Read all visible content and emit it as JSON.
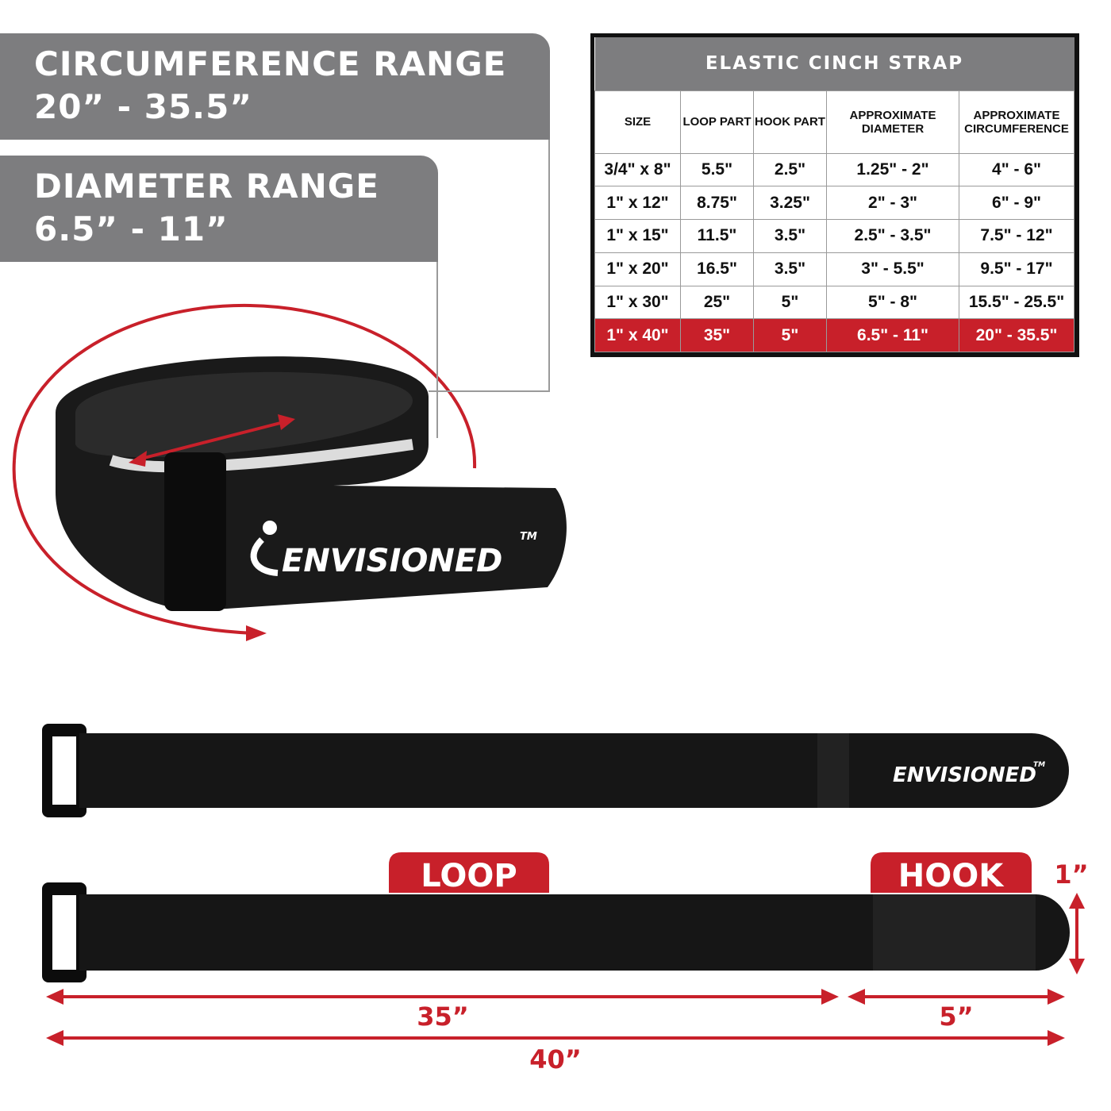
{
  "circumference_banner": {
    "title": "CIRCUMFERENCE RANGE",
    "value": "20” - 35.5”"
  },
  "diameter_banner": {
    "title": "DIAMETER RANGE",
    "value": "6.5” - 11”"
  },
  "table": {
    "title": "ELASTIC CINCH STRAP",
    "headers": [
      "SIZE",
      "LOOP PART",
      "HOOK PART",
      "APPROXIMATE DIAMETER",
      "APPROXIMATE CIRCUMFERENCE"
    ],
    "rows": [
      [
        "3/4\" x 8\"",
        "5.5\"",
        "2.5\"",
        "1.25\" - 2\"",
        "4\" - 6\""
      ],
      [
        "1\" x 12\"",
        "8.75\"",
        "3.25\"",
        "2\" - 3\"",
        "6\" - 9\""
      ],
      [
        "1\" x 15\"",
        "11.5\"",
        "3.5\"",
        "2.5\" - 3.5\"",
        "7.5\" - 12\""
      ],
      [
        "1\" x 20\"",
        "16.5\"",
        "3.5\"",
        "3\" - 5.5\"",
        "9.5\" - 17\""
      ],
      [
        "1\" x 30\"",
        "25\"",
        "5\"",
        "5\" - 8\"",
        "15.5\" - 25.5\""
      ],
      [
        "1\" x 40\"",
        "35\"",
        "5\"",
        "6.5\" - 11\"",
        "20\" - 35.5\""
      ]
    ],
    "highlighted_row": 5
  },
  "brand": {
    "name": "ENVISIONED",
    "mark": "TM"
  },
  "labels": {
    "loop": "LOOP",
    "hook": "HOOK",
    "width": "1”",
    "loop_length": "35”",
    "hook_length": "5”",
    "total_length": "40”"
  },
  "colors": {
    "accent": "#c8202a",
    "banner": "#7d7d7f",
    "strap": "#161616"
  }
}
